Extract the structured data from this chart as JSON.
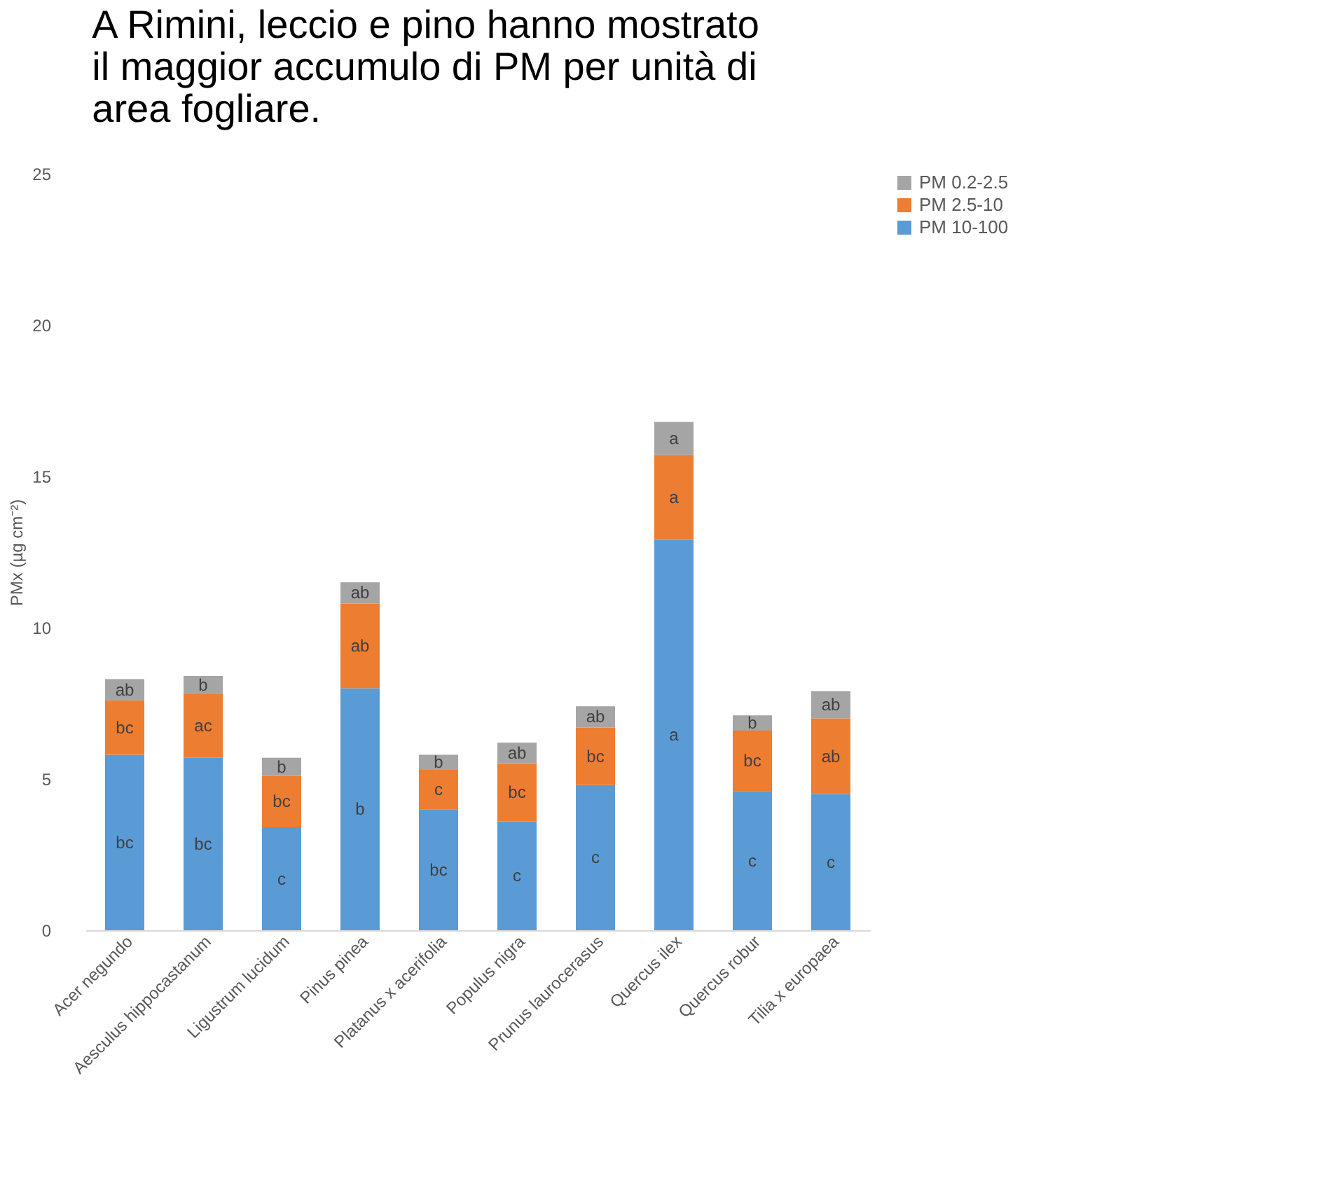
{
  "chart_data": {
    "type": "bar",
    "stacked": true,
    "title": "A Rimini, leccio e pino hanno mostrato il maggior accumulo di PM per unità di area fogliare.",
    "ylabel": "PMx (µg cm⁻²)",
    "categories": [
      "Acer negundo",
      "Aesculus hippocastanum",
      "Ligustrum lucidum",
      "Pinus pinea",
      "Platanus x acerifolia",
      "Populus nigra",
      "Prunus laurocerasus",
      "Quercus ilex",
      "Quercus robur",
      "Tilia x europaea"
    ],
    "series": [
      {
        "name": "PM 10-100",
        "color": "#5b9bd5",
        "values": [
          5.8,
          5.7,
          3.4,
          8.0,
          4.0,
          3.6,
          4.8,
          12.9,
          4.6,
          4.5
        ],
        "value_labels": [
          "bc",
          "bc",
          "c",
          "b",
          "bc",
          "c",
          "c",
          "a",
          "c",
          "c"
        ]
      },
      {
        "name": "PM 2.5-10",
        "color": "#ed7d31",
        "values": [
          1.8,
          2.1,
          1.7,
          2.8,
          1.3,
          1.9,
          1.9,
          2.8,
          2.0,
          2.5
        ],
        "value_labels": [
          "bc",
          "ac",
          "bc",
          "ab",
          "c",
          "bc",
          "bc",
          "a",
          "bc",
          "ab"
        ]
      },
      {
        "name": "PM 0.2-2.5",
        "color": "#a5a5a5",
        "values": [
          0.7,
          0.6,
          0.6,
          0.7,
          0.5,
          0.7,
          0.7,
          1.1,
          0.5,
          0.9
        ],
        "value_labels": [
          "ab",
          "b",
          "b",
          "ab",
          "b",
          "ab",
          "ab",
          "a",
          "b",
          "ab"
        ]
      }
    ],
    "ylim": [
      0,
      25
    ],
    "yticks": [
      0,
      5,
      10,
      15,
      20,
      25
    ],
    "grid": false,
    "legend": "right"
  }
}
